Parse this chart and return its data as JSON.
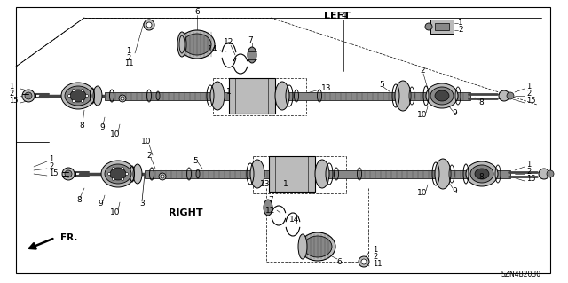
{
  "bg_color": "#ffffff",
  "line_color": "#000000",
  "gray_dark": "#444444",
  "gray_med": "#888888",
  "gray_light": "#bbbbbb",
  "label_LEFT": "LEFT",
  "label_RIGHT": "RIGHT",
  "label_FR": "FR.",
  "label_part_number": "SZN4B2030",
  "figsize": [
    6.4,
    3.19
  ],
  "dpi": 100
}
